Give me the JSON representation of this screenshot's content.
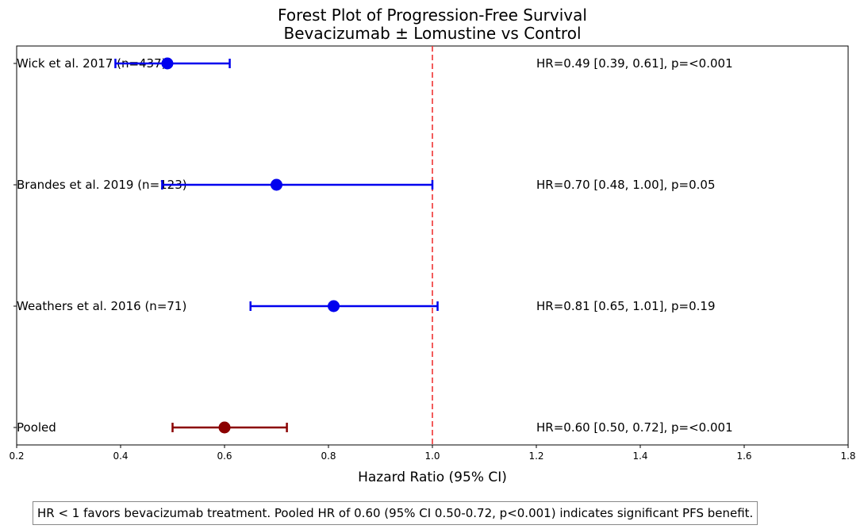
{
  "chart_data": {
    "type": "forest",
    "title": "Forest Plot of Progression-Free Survival",
    "subtitle": "Bevacizumab ± Lomustine vs Control",
    "xlabel": "Hazard Ratio (95% CI)",
    "xlim": [
      0.2,
      1.8
    ],
    "xticks": [
      "0.2",
      "0.4",
      "0.6",
      "0.8",
      "1.0",
      "1.2",
      "1.4",
      "1.6",
      "1.8"
    ],
    "reference_line": 1.0,
    "colors": {
      "study": "#0000ee",
      "pooled": "#8b0000",
      "reference": "#ee3333"
    },
    "studies": [
      {
        "label": "Wick et al. 2017 (n=437)",
        "hr": 0.49,
        "lo": 0.39,
        "hi": 0.61,
        "annotation": "HR=0.49 [0.39, 0.61], p=<0.001",
        "pooled": false
      },
      {
        "label": "Brandes et al. 2019 (n=123)",
        "hr": 0.7,
        "lo": 0.48,
        "hi": 1.0,
        "annotation": "HR=0.70 [0.48, 1.00], p=0.05",
        "pooled": false
      },
      {
        "label": "Weathers et al. 2016 (n=71)",
        "hr": 0.81,
        "lo": 0.65,
        "hi": 1.01,
        "annotation": "HR=0.81 [0.65, 1.01], p=0.19",
        "pooled": false
      },
      {
        "label": "Pooled",
        "hr": 0.6,
        "lo": 0.5,
        "hi": 0.72,
        "annotation": "HR=0.60 [0.50, 0.72], p=<0.001",
        "pooled": true
      }
    ]
  },
  "footnote": "HR < 1 favors bevacizumab treatment. Pooled HR of 0.60 (95% CI 0.50-0.72, p<0.001) indicates significant PFS benefit."
}
